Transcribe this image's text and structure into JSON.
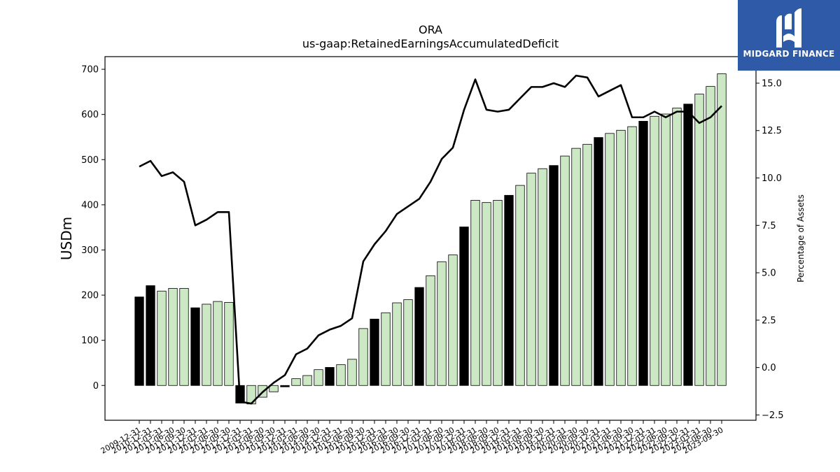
{
  "logo": {
    "text": "MIDGARD FINANCE",
    "icon": "midgard-m-logo-icon",
    "color": "#2f5aa8"
  },
  "chart_data": {
    "type": "bar",
    "title": "ORA",
    "subtitle": "us-gaap:RetainedEarningsAccumulatedDeficit",
    "ylabel": "USDm",
    "y2label": "Percentage of Assets",
    "ylim": [
      -77,
      728
    ],
    "y2lim": [
      -2.78,
      16.4
    ],
    "yticks": [
      0,
      100,
      200,
      300,
      400,
      500,
      600,
      700
    ],
    "y2ticks": [
      -2.5,
      0.0,
      2.5,
      5.0,
      7.5,
      10.0,
      12.5,
      15.0
    ],
    "y2tick_labels": [
      "−2.5",
      "0.0",
      "2.5",
      "5.0",
      "7.5",
      "10.0",
      "12.5",
      "15.0"
    ],
    "grid": false,
    "colors": {
      "annual": "#000000",
      "quarterly": "#cde8c5",
      "edge": "#000000",
      "line": "#000000"
    },
    "categories": [
      "2009-12-31",
      "2010-12-31",
      "2011-03-31",
      "2011-06-30",
      "2011-09-30",
      "2011-12-31",
      "2012-03-31",
      "2012-06-30",
      "2012-09-30",
      "2012-12-31",
      "2013-03-31",
      "2013-06-30",
      "2013-09-30",
      "2013-12-31",
      "2014-03-31",
      "2014-06-30",
      "2014-09-30",
      "2014-12-31",
      "2015-03-31",
      "2015-06-30",
      "2015-09-30",
      "2015-12-31",
      "2016-03-31",
      "2016-06-30",
      "2016-09-30",
      "2016-12-31",
      "2017-03-31",
      "2017-06-30",
      "2017-09-30",
      "2017-12-31",
      "2018-03-31",
      "2018-06-30",
      "2018-09-30",
      "2018-12-31",
      "2019-03-31",
      "2019-06-30",
      "2019-09-30",
      "2019-12-31",
      "2020-03-31",
      "2020-06-30",
      "2020-09-30",
      "2020-12-31",
      "2021-03-31",
      "2021-06-30",
      "2021-09-30",
      "2021-12-31",
      "2022-03-31",
      "2022-06-30",
      "2022-09-30",
      "2022-12-31",
      "2023-03-31",
      "2023-06-30",
      "2023-09-30"
    ],
    "series": [
      {
        "type": "bar",
        "values": [
          196,
          221,
          209,
          215,
          215,
          172,
          180,
          186,
          184,
          -39,
          -41,
          -26,
          -14,
          -3,
          15,
          22,
          35,
          40,
          46,
          58,
          126,
          147,
          161,
          183,
          190,
          217,
          243,
          274,
          289,
          351,
          410,
          405,
          410,
          421,
          443,
          470,
          480,
          487,
          508,
          525,
          534,
          549,
          558,
          565,
          573,
          585,
          596,
          601,
          614,
          623,
          645,
          662,
          690
        ],
        "annual": [
          true,
          true,
          false,
          false,
          false,
          true,
          false,
          false,
          false,
          true,
          false,
          false,
          false,
          true,
          false,
          false,
          false,
          true,
          false,
          false,
          false,
          true,
          false,
          false,
          false,
          true,
          false,
          false,
          false,
          true,
          false,
          false,
          false,
          true,
          false,
          false,
          false,
          true,
          false,
          false,
          false,
          true,
          false,
          false,
          false,
          true,
          false,
          false,
          false,
          true,
          false,
          false,
          false
        ]
      },
      {
        "type": "line",
        "axis": "y2",
        "values": [
          10.6,
          10.9,
          10.1,
          10.3,
          9.8,
          7.5,
          7.8,
          8.2,
          8.2,
          -1.8,
          -1.9,
          -1.3,
          -0.8,
          -0.4,
          0.7,
          1.0,
          1.7,
          2.0,
          2.2,
          2.6,
          5.6,
          6.5,
          7.2,
          8.1,
          8.5,
          8.9,
          9.8,
          11.0,
          11.6,
          13.6,
          15.2,
          13.6,
          13.5,
          13.6,
          14.2,
          14.8,
          14.8,
          15.0,
          14.8,
          15.4,
          15.3,
          14.3,
          14.6,
          14.9,
          13.2,
          13.2,
          13.5,
          13.2,
          13.5,
          13.5,
          12.9,
          13.2,
          13.8
        ]
      }
    ]
  }
}
